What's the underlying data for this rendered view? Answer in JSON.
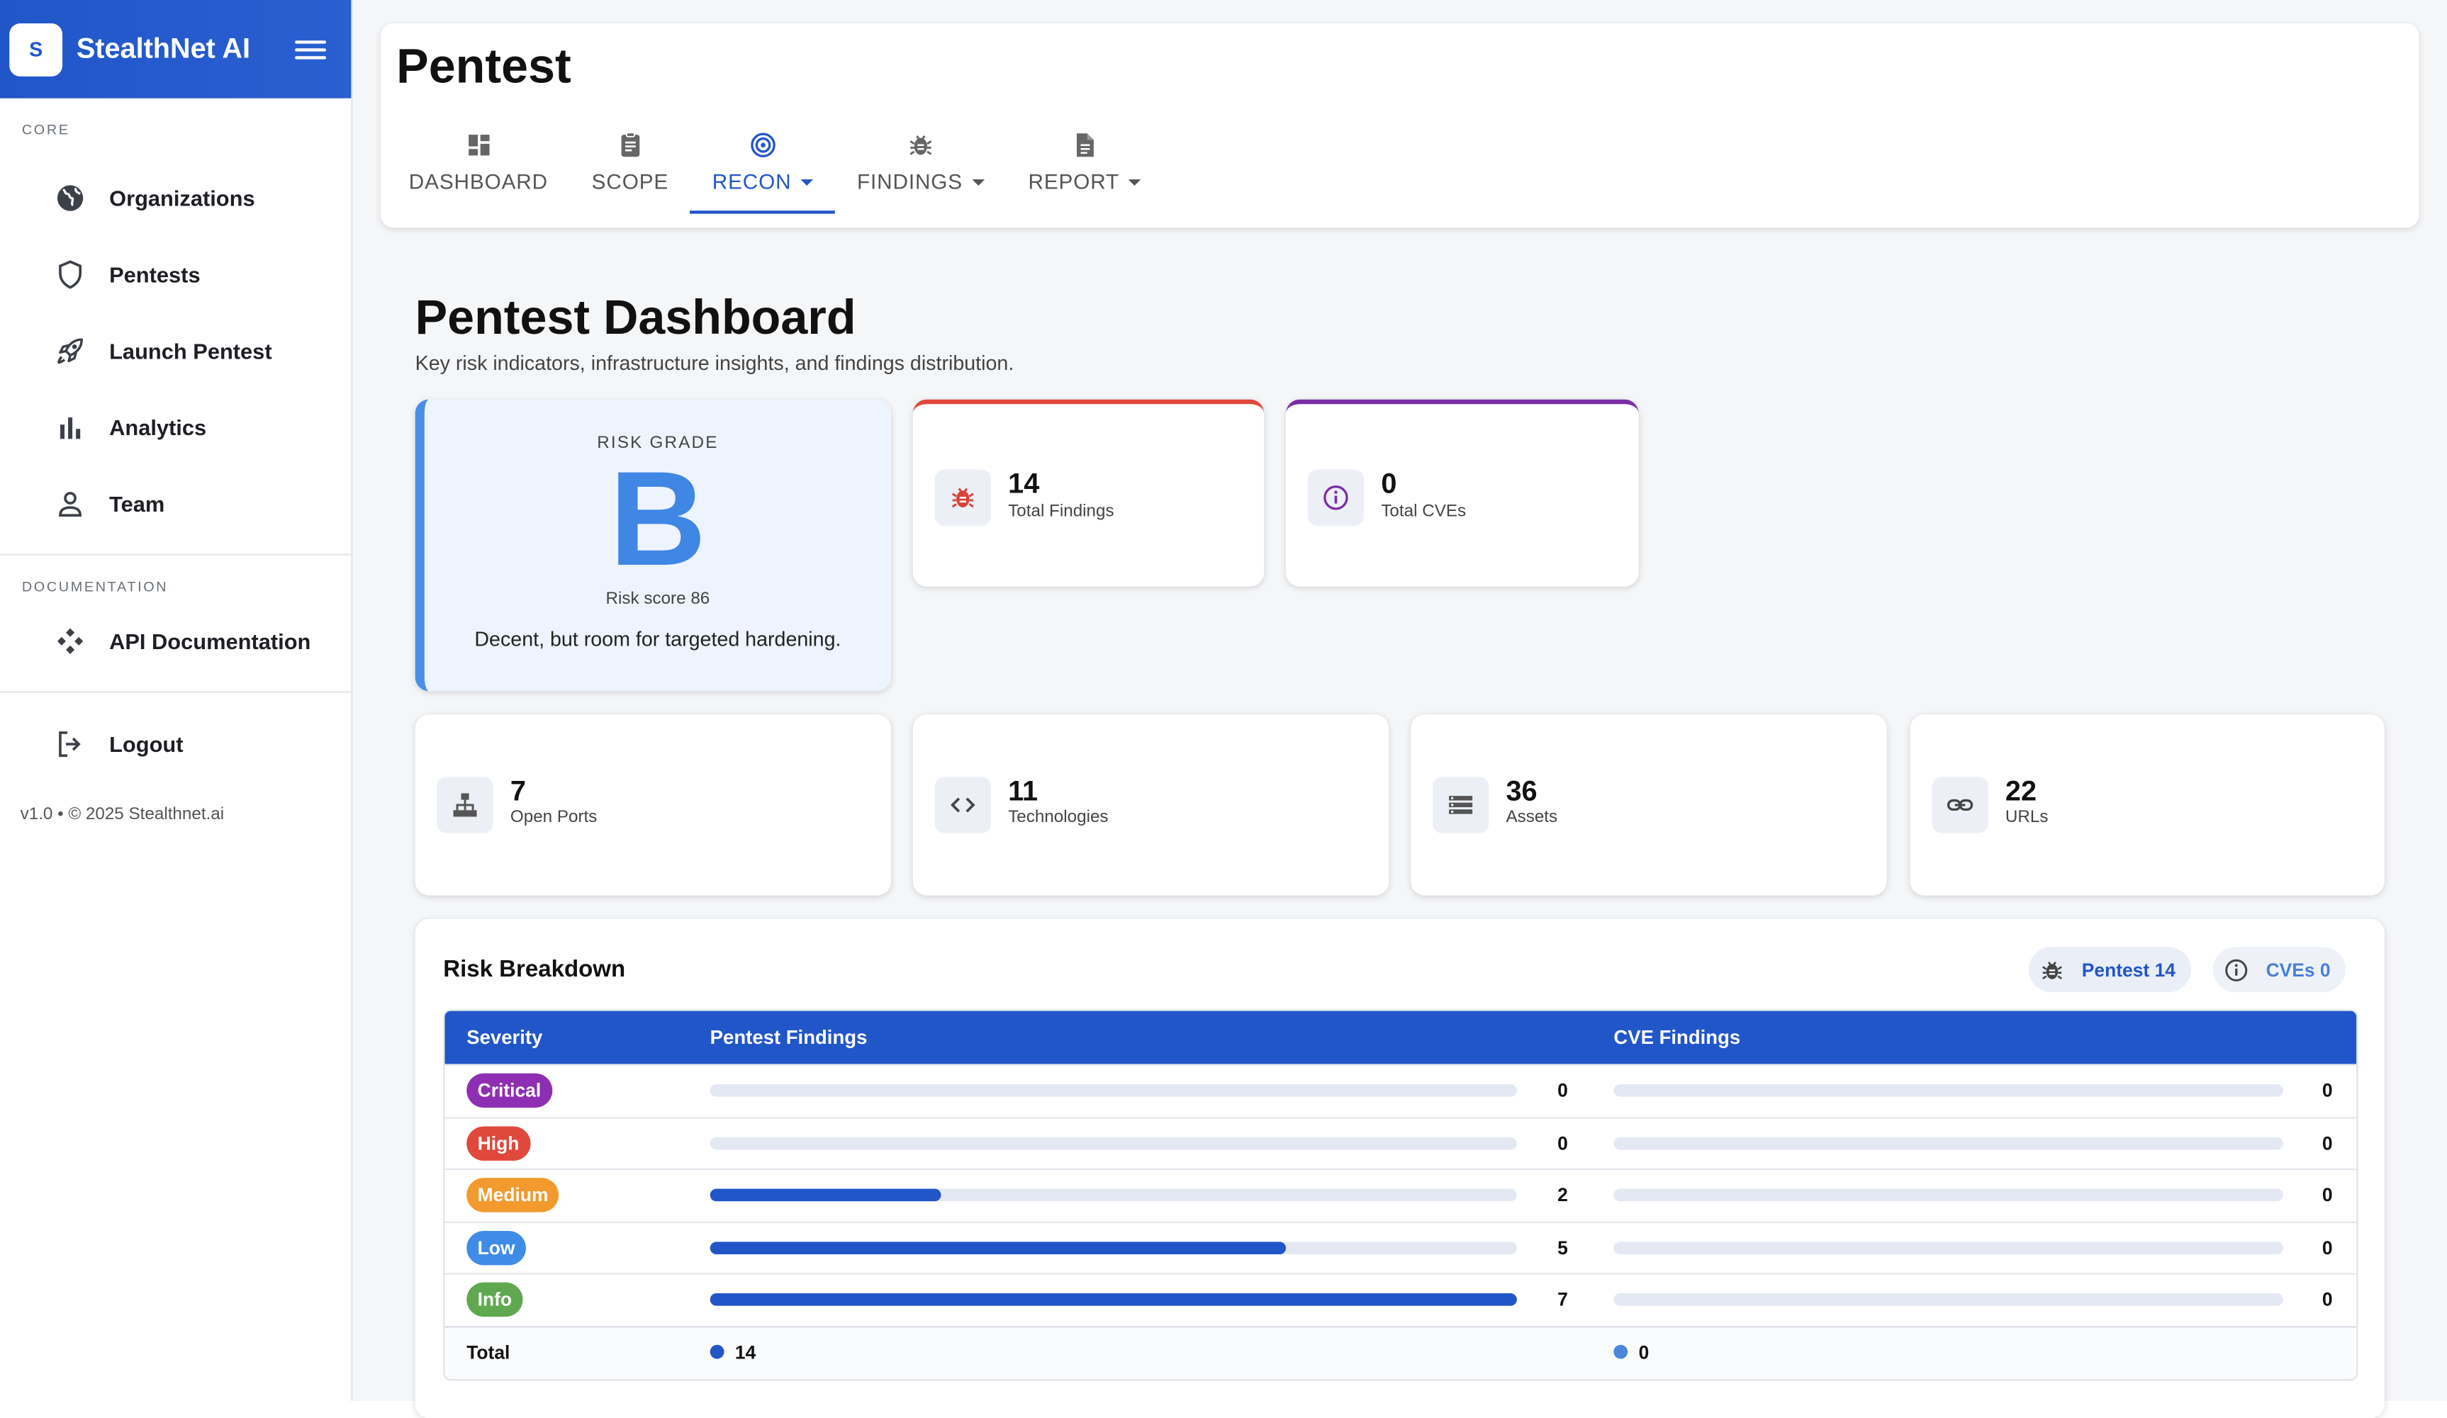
{
  "brand": {
    "logo_letter": "S",
    "name": "StealthNet AI"
  },
  "sidebar": {
    "core_label": "CORE",
    "items": [
      {
        "label": "Organizations",
        "icon": "globe-icon"
      },
      {
        "label": "Pentests",
        "icon": "shield-icon"
      },
      {
        "label": "Launch Pentest",
        "icon": "rocket-icon"
      },
      {
        "label": "Analytics",
        "icon": "bar-chart-icon"
      },
      {
        "label": "Team",
        "icon": "person-icon"
      }
    ],
    "docs_label": "DOCUMENTATION",
    "docs_item": {
      "label": "API Documentation",
      "icon": "api-icon"
    },
    "logout_label": "Logout",
    "version": "v1.0 • © 2025 Stealthnet.ai"
  },
  "header": {
    "title": "Pentest",
    "tabs": [
      {
        "label": "DASHBOARD",
        "icon": "dashboard-icon"
      },
      {
        "label": "SCOPE",
        "icon": "clipboard-icon"
      },
      {
        "label": "RECON",
        "icon": "target-icon"
      },
      {
        "label": "FINDINGS",
        "icon": "bug-icon"
      },
      {
        "label": "REPORT",
        "icon": "document-icon"
      }
    ],
    "active_tab": "RECON"
  },
  "dashboard": {
    "title": "Pentest Dashboard",
    "subtitle": "Key risk indicators, infrastructure insights, and findings distribution.",
    "risk": {
      "label": "RISK GRADE",
      "grade": "B",
      "score_text": "Risk score 86",
      "description": "Decent, but room for targeted hardening."
    },
    "stats_top": [
      {
        "value": "14",
        "label": "Total Findings",
        "accent": "#e0483c",
        "icon": "bug-icon"
      },
      {
        "value": "0",
        "label": "Total CVEs",
        "accent": "#7b2ea6",
        "icon": "info-icon"
      }
    ],
    "stats_bottom": [
      {
        "value": "7",
        "label": "Open Ports",
        "icon": "network-icon"
      },
      {
        "value": "11",
        "label": "Technologies",
        "icon": "code-icon"
      },
      {
        "value": "36",
        "label": "Assets",
        "icon": "storage-icon"
      },
      {
        "value": "22",
        "label": "URLs",
        "icon": "link-icon"
      }
    ]
  },
  "breakdown": {
    "title": "Risk Breakdown",
    "chip_pentest": "Pentest 14",
    "chip_cves": "CVEs 0",
    "columns": [
      "Severity",
      "Pentest Findings",
      "CVE Findings"
    ],
    "rows": [
      {
        "severity": "Critical",
        "color": "#8e2fb3",
        "pentest": 0,
        "cve": 0
      },
      {
        "severity": "High",
        "color": "#e0483c",
        "pentest": 0,
        "cve": 0
      },
      {
        "severity": "Medium",
        "color": "#f29a2e",
        "pentest": 2,
        "cve": 0
      },
      {
        "severity": "Low",
        "color": "#3f8ce6",
        "pentest": 5,
        "cve": 0
      },
      {
        "severity": "Info",
        "color": "#5fa84f",
        "pentest": 7,
        "cve": 0
      }
    ],
    "max_pentest": 7,
    "total_label": "Total",
    "total_pentest": "14",
    "total_cve": "0"
  }
}
